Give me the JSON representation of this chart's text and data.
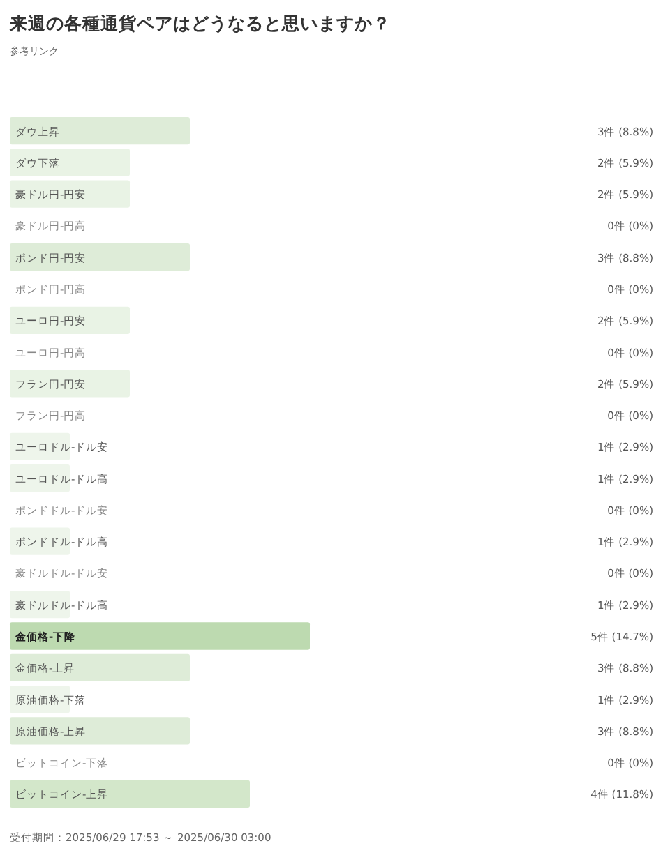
{
  "chart_data": {
    "type": "bar",
    "orientation": "horizontal",
    "title": "来週の各種通貨ペアはどうなると思いますか？",
    "categories": [
      "ダウ上昇",
      "ダウ下落",
      "豪ドル円-円安",
      "豪ドル円-円高",
      "ポンド円-円安",
      "ポンド円-円高",
      "ユーロ円-円安",
      "ユーロ円-円高",
      "フラン円-円安",
      "フラン円-円高",
      "ユーロドル-ドル安",
      "ユーロドル-ドル高",
      "ポンドドル-ドル安",
      "ポンドドル-ドル高",
      "豪ドルドル-ドル安",
      "豪ドルドル-ドル高",
      "金価格-下降",
      "金価格-上昇",
      "原油価格-下落",
      "原油価格-上昇",
      "ビットコイン-下落",
      "ビットコイン-上昇"
    ],
    "values": [
      3,
      2,
      2,
      0,
      3,
      0,
      2,
      0,
      2,
      0,
      1,
      1,
      0,
      1,
      0,
      1,
      5,
      3,
      1,
      3,
      0,
      4
    ],
    "value_labels": [
      "3件 (8.8%)",
      "2件 (5.9%)",
      "2件 (5.9%)",
      "0件 (0%)",
      "3件 (8.8%)",
      "0件 (0%)",
      "2件 (5.9%)",
      "0件 (0%)",
      "2件 (5.9%)",
      "0件 (0%)",
      "1件 (2.9%)",
      "1件 (2.9%)",
      "0件 (0%)",
      "1件 (2.9%)",
      "0件 (0%)",
      "1件 (2.9%)",
      "5件 (14.7%)",
      "3件 (8.8%)",
      "1件 (2.9%)",
      "3件 (8.8%)",
      "0件 (0%)",
      "4件 (11.8%)"
    ],
    "colors": [
      "#deecd8",
      "#e9f3e5",
      "#e9f3e5",
      null,
      "#deecd8",
      null,
      "#e9f3e5",
      null,
      "#e9f3e5",
      null,
      "#eef5eb",
      "#eef5eb",
      null,
      "#eef5eb",
      null,
      "#eef5eb",
      "#bddab0",
      "#deecd8",
      "#eef5eb",
      "#deecd8",
      null,
      "#d3e7ca"
    ],
    "annotations": [
      "参考リンク",
      "受付期間：2025/06/29 17:53 ～ 2025/06/30 03:00"
    ]
  }
}
